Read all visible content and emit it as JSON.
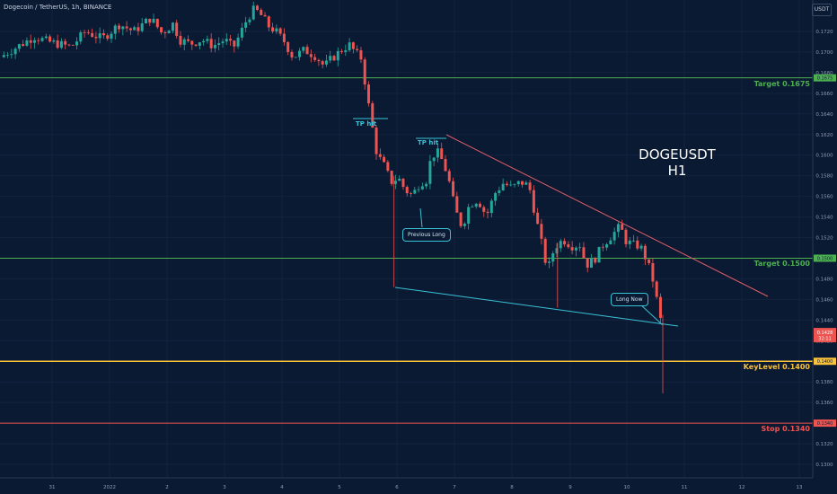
{
  "header": {
    "title": "Dogecoin / TetherUS, 1h, BINANCE",
    "currency": "USDT"
  },
  "annotation": {
    "symbol": "DOGEUSDT",
    "timeframe": "H1"
  },
  "labels": {
    "tp_hit_1": "TP hit",
    "tp_hit_2": "TP hit",
    "previous_long": "Previous Long",
    "long_now": "Long Now"
  },
  "levels": [
    {
      "name": "Target 0.1675",
      "value": 0.1675,
      "color": "#4caf50",
      "tag": "0.1675"
    },
    {
      "name": "Target 0.1500",
      "value": 0.15,
      "color": "#4caf50",
      "tag": "0.1500"
    },
    {
      "name": "KeyLevel 0.1400",
      "value": 0.14,
      "color": "#f9c23c",
      "tag": "0.1400"
    },
    {
      "name": "Stop 0.1340",
      "value": 0.134,
      "color": "#ef5350",
      "tag": "0.1340"
    }
  ],
  "current_price": {
    "value": "0.1428",
    "countdown": "32:11",
    "color": "#ef5350"
  },
  "colors": {
    "up": "#26a69a",
    "down": "#ef5350",
    "background": "#0b1a33",
    "trendline_upper": "#e05c6a",
    "trendline_lower": "#39c2d6"
  },
  "chart_data": {
    "type": "candlestick",
    "x_tick_labels": [
      "31",
      "2022",
      "2",
      "3",
      "4",
      "5",
      "6",
      "7",
      "8",
      "9",
      "10",
      "11",
      "12",
      "13"
    ],
    "y_tick_labels": [
      "0.1720",
      "0.1700",
      "0.1680",
      "0.1660",
      "0.1640",
      "0.1620",
      "0.1600",
      "0.1580",
      "0.1560",
      "0.1540",
      "0.1520",
      "0.1480",
      "0.1460",
      "0.1440",
      "0.1420",
      "0.1380",
      "0.1360",
      "0.1320",
      "0.1300"
    ],
    "ylim": [
      0.1285,
      0.1743
    ],
    "approx_close_path": [
      [
        0,
        0.1695
      ],
      [
        24,
        0.1715
      ],
      [
        34,
        0.171
      ],
      [
        50,
        0.1705
      ],
      [
        60,
        0.172
      ],
      [
        72,
        0.1713
      ],
      [
        84,
        0.1727
      ],
      [
        94,
        0.172
      ],
      [
        106,
        0.1733
      ],
      [
        114,
        0.1718
      ],
      [
        122,
        0.1728
      ],
      [
        126,
        0.1712
      ],
      [
        134,
        0.1708
      ],
      [
        142,
        0.1712
      ],
      [
        150,
        0.1706
      ],
      [
        158,
        0.1712
      ],
      [
        164,
        0.1704
      ],
      [
        169,
        0.1718
      ],
      [
        174,
        0.1733
      ],
      [
        179,
        0.1742
      ],
      [
        184,
        0.1735
      ],
      [
        189,
        0.1725
      ],
      [
        194,
        0.172
      ],
      [
        200,
        0.171
      ],
      [
        206,
        0.1695
      ],
      [
        214,
        0.1702
      ],
      [
        222,
        0.1696
      ],
      [
        228,
        0.1686
      ],
      [
        232,
        0.1692
      ],
      [
        236,
        0.1697
      ],
      [
        242,
        0.1704
      ],
      [
        246,
        0.1707
      ],
      [
        250,
        0.1699
      ],
      [
        254,
        0.1694
      ],
      [
        260,
        0.1641
      ],
      [
        265,
        0.1601
      ],
      [
        270,
        0.159
      ],
      [
        275,
        0.1574
      ],
      [
        280,
        0.1578
      ],
      [
        285,
        0.1566
      ],
      [
        290,
        0.1561
      ],
      [
        295,
        0.1573
      ],
      [
        300,
        0.1576
      ],
      [
        303,
        0.1597
      ],
      [
        307,
        0.1604
      ],
      [
        312,
        0.1592
      ],
      [
        316,
        0.1573
      ],
      [
        320,
        0.1547
      ],
      [
        325,
        0.153
      ],
      [
        330,
        0.1552
      ],
      [
        336,
        0.1557
      ],
      [
        342,
        0.1541
      ],
      [
        348,
        0.1563
      ],
      [
        354,
        0.1573
      ],
      [
        360,
        0.1568
      ],
      [
        366,
        0.1574
      ],
      [
        372,
        0.157
      ],
      [
        376,
        0.1544
      ],
      [
        380,
        0.1519
      ],
      [
        385,
        0.1488
      ],
      [
        390,
        0.1511
      ],
      [
        396,
        0.1518
      ],
      [
        402,
        0.1512
      ],
      [
        408,
        0.1513
      ],
      [
        412,
        0.1493
      ],
      [
        418,
        0.1499
      ],
      [
        424,
        0.1513
      ],
      [
        430,
        0.1522
      ],
      [
        436,
        0.1531
      ],
      [
        440,
        0.1517
      ],
      [
        445,
        0.1513
      ],
      [
        450,
        0.1512
      ],
      [
        455,
        0.1497
      ],
      [
        459,
        0.1479
      ],
      [
        463,
        0.1451
      ],
      [
        466,
        0.1428
      ]
    ],
    "levels": [
      {
        "name": "Target 0.1675",
        "value": 0.1675
      },
      {
        "name": "Target 0.1500",
        "value": 0.15
      },
      {
        "name": "KeyLevel 0.1400",
        "value": 0.14
      },
      {
        "name": "Stop 0.1340",
        "value": 0.134
      }
    ],
    "current_price": 0.1428,
    "annotations": [
      "TP hit",
      "TP hit",
      "Previous Long",
      "Long Now",
      "DOGEUSDT",
      "H1"
    ]
  }
}
